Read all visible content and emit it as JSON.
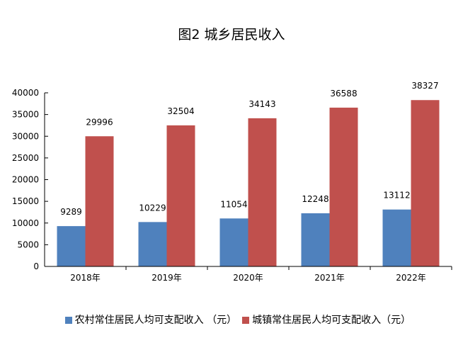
{
  "chart_data": {
    "type": "bar",
    "title": "图2  城乡居民收入",
    "categories": [
      "2018年",
      "2019年",
      "2020年",
      "2021年",
      "2022年"
    ],
    "series": [
      {
        "name": "农村常住居民人均可支配收入 （元）",
        "color": "#4F81BD",
        "values": [
          9289,
          10229,
          11054,
          12248,
          13112
        ]
      },
      {
        "name": "城镇常住居民人均可支配收入（元）",
        "color": "#C0504D",
        "values": [
          29996,
          32504,
          34143,
          36588,
          38327
        ]
      }
    ],
    "yticks": [
      0,
      5000,
      10000,
      15000,
      20000,
      25000,
      30000,
      35000,
      40000
    ],
    "ylim": [
      0,
      40000
    ],
    "grid": false,
    "legend": "bottom",
    "xlabel": "",
    "ylabel": ""
  }
}
